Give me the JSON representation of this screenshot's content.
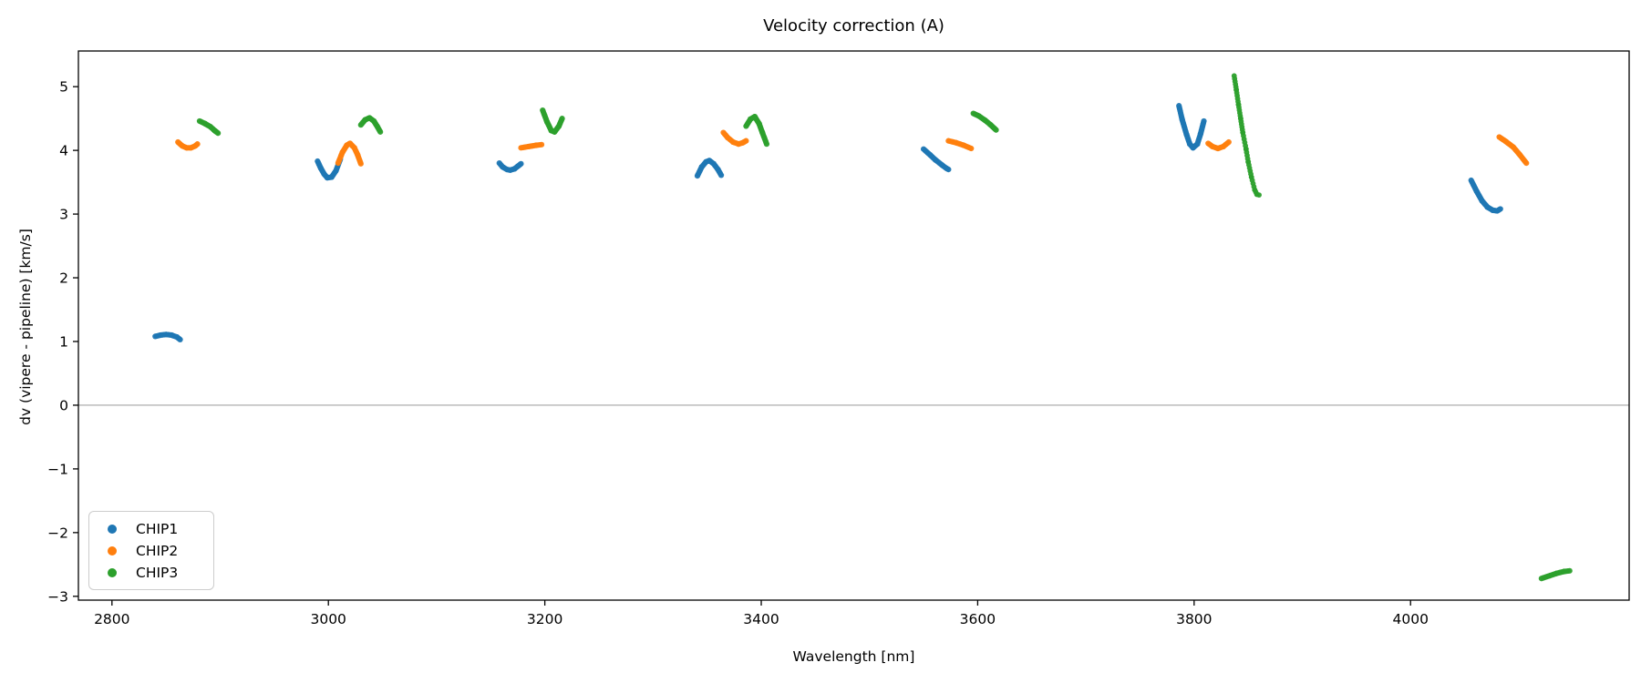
{
  "chart_data": {
    "type": "scatter",
    "title": "Velocity correction (A)",
    "xlabel": "Wavelength [nm]",
    "ylabel": "dv (vipere - pipeline) [km/s]",
    "xlim": [
      2769,
      4202
    ],
    "ylim": [
      -3.06,
      5.56
    ],
    "xticks": [
      2800,
      3000,
      3200,
      3400,
      3600,
      3800,
      4000
    ],
    "yticks": [
      -3,
      -2,
      -1,
      0,
      1,
      2,
      3,
      4,
      5
    ],
    "grid": false,
    "zero_line": {
      "y": 0,
      "color": "#8a8a8a"
    },
    "axis_color": "#000000",
    "legend": {
      "position": "lower left"
    },
    "series": [
      {
        "name": "CHIP1",
        "color": "#1f77b4",
        "segments": [
          {
            "points": [
              [
                2840,
                1.08
              ],
              [
                2845,
                1.1
              ],
              [
                2850,
                1.11
              ],
              [
                2855,
                1.1
              ],
              [
                2860,
                1.07
              ],
              [
                2863,
                1.03
              ]
            ]
          },
          {
            "points": [
              [
                2990,
                3.83
              ],
              [
                2993,
                3.72
              ],
              [
                2996,
                3.63
              ],
              [
                2999,
                3.57
              ],
              [
                3003,
                3.58
              ],
              [
                3007,
                3.68
              ],
              [
                3011,
                3.86
              ]
            ]
          },
          {
            "points": [
              [
                3158,
                3.8
              ],
              [
                3161,
                3.74
              ],
              [
                3165,
                3.7
              ],
              [
                3168,
                3.69
              ],
              [
                3172,
                3.71
              ],
              [
                3175,
                3.75
              ],
              [
                3178,
                3.79
              ]
            ]
          },
          {
            "points": [
              [
                3341,
                3.6
              ],
              [
                3345,
                3.74
              ],
              [
                3349,
                3.82
              ],
              [
                3352,
                3.84
              ],
              [
                3356,
                3.79
              ],
              [
                3360,
                3.7
              ],
              [
                3363,
                3.61
              ]
            ]
          },
          {
            "points": [
              [
                3550,
                4.02
              ],
              [
                3556,
                3.93
              ],
              [
                3561,
                3.85
              ],
              [
                3567,
                3.77
              ],
              [
                3571,
                3.72
              ],
              [
                3573,
                3.7
              ]
            ]
          },
          {
            "points": [
              [
                3786,
                4.7
              ],
              [
                3789,
                4.48
              ],
              [
                3793,
                4.25
              ],
              [
                3796,
                4.1
              ],
              [
                3799,
                4.04
              ],
              [
                3803,
                4.1
              ],
              [
                3806,
                4.26
              ],
              [
                3809,
                4.46
              ]
            ]
          },
          {
            "points": [
              [
                4056,
                3.53
              ],
              [
                4061,
                3.36
              ],
              [
                4066,
                3.21
              ],
              [
                4071,
                3.11
              ],
              [
                4076,
                3.06
              ],
              [
                4080,
                3.05
              ],
              [
                4083,
                3.08
              ]
            ]
          }
        ]
      },
      {
        "name": "CHIP2",
        "color": "#ff7f0e",
        "segments": [
          {
            "points": [
              [
                2861,
                4.13
              ],
              [
                2865,
                4.07
              ],
              [
                2869,
                4.04
              ],
              [
                2873,
                4.04
              ],
              [
                2877,
                4.07
              ],
              [
                2879,
                4.1
              ]
            ]
          },
          {
            "points": [
              [
                3009,
                3.8
              ],
              [
                3013,
                3.97
              ],
              [
                3017,
                4.08
              ],
              [
                3020,
                4.11
              ],
              [
                3024,
                4.04
              ],
              [
                3027,
                3.93
              ],
              [
                3030,
                3.79
              ]
            ]
          },
          {
            "points": [
              [
                3178,
                4.04
              ],
              [
                3185,
                4.06
              ],
              [
                3192,
                4.08
              ],
              [
                3197,
                4.09
              ]
            ]
          },
          {
            "points": [
              [
                3365,
                4.28
              ],
              [
                3369,
                4.2
              ],
              [
                3374,
                4.13
              ],
              [
                3379,
                4.1
              ],
              [
                3383,
                4.12
              ],
              [
                3386,
                4.15
              ]
            ]
          },
          {
            "points": [
              [
                3573,
                4.15
              ],
              [
                3580,
                4.12
              ],
              [
                3587,
                4.08
              ],
              [
                3594,
                4.03
              ]
            ]
          },
          {
            "points": [
              [
                3813,
                4.11
              ],
              [
                3817,
                4.06
              ],
              [
                3822,
                4.03
              ],
              [
                3827,
                4.06
              ],
              [
                3832,
                4.13
              ]
            ]
          },
          {
            "points": [
              [
                4082,
                4.21
              ],
              [
                4088,
                4.14
              ],
              [
                4095,
                4.05
              ],
              [
                4101,
                3.93
              ],
              [
                4107,
                3.8
              ]
            ]
          }
        ]
      },
      {
        "name": "CHIP3",
        "color": "#2ca02c",
        "segments": [
          {
            "points": [
              [
                2881,
                4.46
              ],
              [
                2886,
                4.42
              ],
              [
                2891,
                4.37
              ],
              [
                2895,
                4.31
              ],
              [
                2898,
                4.27
              ]
            ]
          },
          {
            "points": [
              [
                3030,
                4.4
              ],
              [
                3034,
                4.48
              ],
              [
                3038,
                4.51
              ],
              [
                3042,
                4.46
              ],
              [
                3045,
                4.38
              ],
              [
                3048,
                4.29
              ]
            ]
          },
          {
            "points": [
              [
                3198,
                4.63
              ],
              [
                3202,
                4.45
              ],
              [
                3206,
                4.31
              ],
              [
                3209,
                4.29
              ],
              [
                3213,
                4.38
              ],
              [
                3216,
                4.5
              ]
            ]
          },
          {
            "points": [
              [
                3386,
                4.38
              ],
              [
                3390,
                4.49
              ],
              [
                3394,
                4.53
              ],
              [
                3398,
                4.42
              ],
              [
                3401,
                4.28
              ],
              [
                3405,
                4.1
              ]
            ]
          },
          {
            "points": [
              [
                3596,
                4.58
              ],
              [
                3601,
                4.54
              ],
              [
                3607,
                4.47
              ],
              [
                3612,
                4.4
              ],
              [
                3617,
                4.32
              ]
            ]
          },
          {
            "points": [
              [
                3837,
                5.17
              ],
              [
                3839,
                4.95
              ],
              [
                3841,
                4.72
              ],
              [
                3843,
                4.5
              ],
              [
                3845,
                4.28
              ],
              [
                3848,
                4.02
              ],
              [
                3850,
                3.82
              ],
              [
                3853,
                3.58
              ],
              [
                3856,
                3.38
              ],
              [
                3858,
                3.31
              ],
              [
                3860,
                3.3
              ]
            ],
            "spacing": 3.8,
            "r": 2.9
          },
          {
            "points": [
              [
                4121,
                -2.72
              ],
              [
                4128,
                -2.68
              ],
              [
                4135,
                -2.64
              ],
              [
                4142,
                -2.61
              ],
              [
                4147,
                -2.6
              ]
            ]
          }
        ]
      }
    ]
  }
}
